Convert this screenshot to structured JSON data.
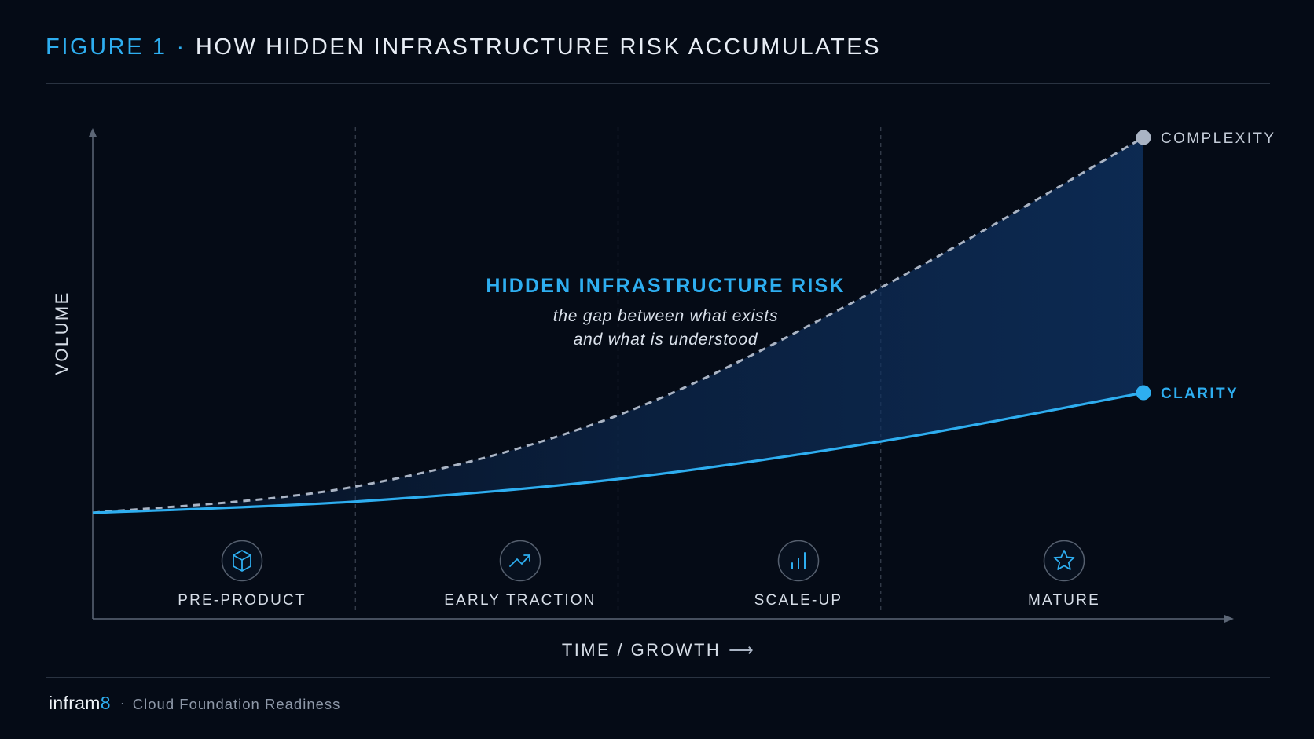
{
  "header": {
    "figure_label": "FIGURE 1",
    "separator": "·",
    "title": "HOW HIDDEN INFRASTRUCTURE RISK ACCUMULATES"
  },
  "chart_data": {
    "type": "area",
    "xlabel": "TIME / GROWTH",
    "xlabel_arrow": "⟶",
    "ylabel": "VOLUME",
    "stages": [
      {
        "label": "PRE-PRODUCT",
        "icon": "cube-icon"
      },
      {
        "label": "EARLY TRACTION",
        "icon": "trending-up-icon"
      },
      {
        "label": "SCALE-UP",
        "icon": "bar-chart-icon"
      },
      {
        "label": "MATURE",
        "icon": "star-icon"
      }
    ],
    "series": [
      {
        "name": "COMPLEXITY",
        "style": "dashed",
        "color": "#aab4c4",
        "values": [
          0.0,
          0.07,
          0.26,
          0.6,
          1.0
        ]
      },
      {
        "name": "CLARITY",
        "style": "solid",
        "color": "#2eaef0",
        "values": [
          0.0,
          0.03,
          0.09,
          0.19,
          0.32
        ]
      }
    ],
    "annotation": {
      "title": "HIDDEN INFRASTRUCTURE RISK",
      "line1": "the gap between what exists",
      "line2": "and what is understood"
    },
    "grid": "dashed vertical stage dividers",
    "colors": {
      "accent": "#2eaef0",
      "complexity": "#aab4c4",
      "fill": "#0e2f5c",
      "background": "#050b16"
    }
  },
  "footer": {
    "brand_main": "infram",
    "brand_accent": "8",
    "separator": "·",
    "tagline": "Cloud Foundation Readiness"
  }
}
